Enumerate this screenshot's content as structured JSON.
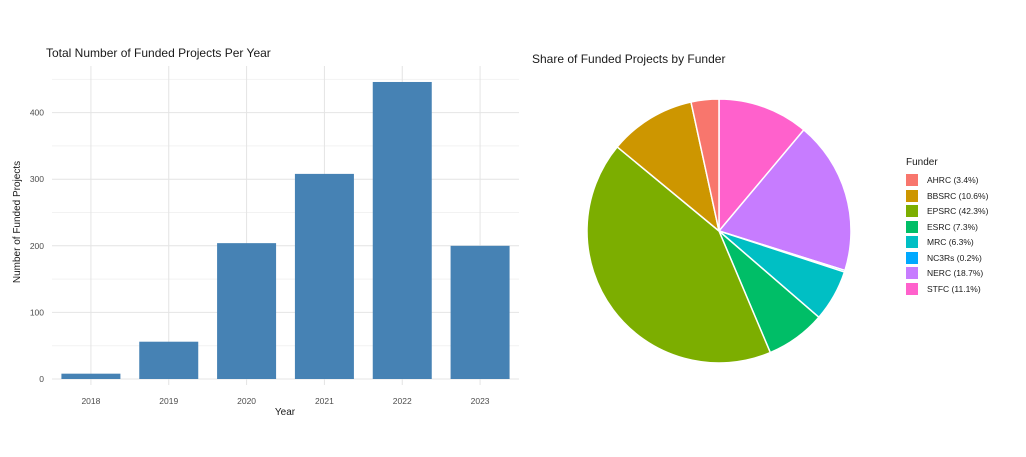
{
  "page": {
    "background_color": "#ffffff",
    "text_color": "#1a1a1a",
    "tick_color": "#4d4d4d",
    "grid_major_color": "#e4e4e4",
    "grid_minor_color": "#f2f2f2"
  },
  "chart_data": [
    {
      "type": "bar",
      "title": "Total Number of Funded Projects Per Year",
      "xlabel": "Year",
      "ylabel": "Number of Funded Projects",
      "categories": [
        "2018",
        "2019",
        "2020",
        "2021",
        "2022",
        "2023"
      ],
      "values": [
        8,
        56,
        204,
        308,
        446,
        200
      ],
      "ylim": [
        0,
        470
      ],
      "yticks": [
        0,
        100,
        200,
        300,
        400
      ],
      "yticks_minor": [
        50,
        150,
        250,
        350,
        450
      ],
      "bar_color": "#4682B4",
      "grid": "on",
      "legend": "none"
    },
    {
      "type": "pie",
      "title": "Share of Funded Projects by Funder",
      "legend_title": "Funder",
      "legend_position": "right",
      "start_angle": "12 o'clock",
      "direction": "counterclockwise in legend order (clockwise order from top: STFC, NERC, NC3Rs, MRC, ESRC, EPSRC, BBSRC, AHRC)",
      "slice_stroke_color": "#ffffff",
      "slices": [
        {
          "name": "AHRC",
          "label": "AHRC (3.4%)",
          "value": 3.4,
          "color": "#F8766D"
        },
        {
          "name": "BBSRC",
          "label": "BBSRC (10.6%)",
          "value": 10.6,
          "color": "#CD9600"
        },
        {
          "name": "EPSRC",
          "label": "EPSRC (42.3%)",
          "value": 42.3,
          "color": "#7CAE00"
        },
        {
          "name": "ESRC",
          "label": "ESRC (7.3%)",
          "value": 7.3,
          "color": "#00BE67"
        },
        {
          "name": "MRC",
          "label": "MRC (6.3%)",
          "value": 6.3,
          "color": "#00BFC4"
        },
        {
          "name": "NC3Rs",
          "label": "NC3Rs (0.2%)",
          "value": 0.2,
          "color": "#00A9FF"
        },
        {
          "name": "NERC",
          "label": "NERC (18.7%)",
          "value": 18.7,
          "color": "#C77CFF"
        },
        {
          "name": "STFC",
          "label": "STFC (11.1%)",
          "value": 11.1,
          "color": "#FF61CC"
        }
      ]
    }
  ]
}
